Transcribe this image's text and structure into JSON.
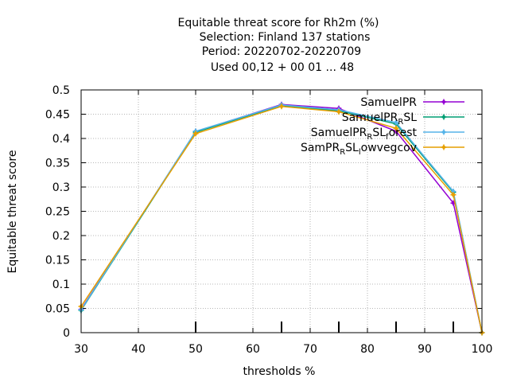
{
  "chart_data": {
    "type": "line",
    "title_lines": [
      "Equitable threat score  for Rh2m (%)",
      "Selection: Finland    137 stations",
      "Period: 20220702-20220709",
      "Used  00,12  + 00 01 ... 48"
    ],
    "xlabel": "thresholds %",
    "ylabel": "Equitable threat score",
    "xlim": [
      30,
      100
    ],
    "ylim": [
      0,
      0.5
    ],
    "xticks": [
      30,
      40,
      50,
      60,
      70,
      80,
      90,
      100
    ],
    "yticks": [
      0,
      0.05,
      0.1,
      0.15,
      0.2,
      0.25,
      0.3,
      0.35,
      0.4,
      0.45,
      0.5
    ],
    "grid": true,
    "legend_position": "top-right",
    "x": [
      30,
      50,
      65,
      75,
      85,
      95,
      100
    ],
    "series": [
      {
        "name": "SamuelPR",
        "legend": {
          "main": "SamuelPR"
        },
        "color": "#9400d3",
        "values": [
          0.048,
          0.414,
          0.47,
          0.462,
          0.415,
          0.267,
          0.0
        ]
      },
      {
        "name": "SamuelPR_RSL",
        "legend": {
          "main": "SamuelPR",
          "sub": "R",
          "rest": "SL"
        },
        "color": "#009e73",
        "values": [
          0.046,
          0.413,
          0.468,
          0.457,
          0.43,
          0.289,
          0.0
        ]
      },
      {
        "name": "SamuelPR_RSL_forest",
        "legend": {
          "main": "SamuelPR",
          "sub": "R",
          "rest": "SL",
          "sub2": "f",
          "rest2": "orest"
        },
        "color": "#56b4e9",
        "values": [
          0.047,
          0.415,
          0.469,
          0.459,
          0.433,
          0.291,
          0.0
        ]
      },
      {
        "name": "SamPR_RSL_lowvegcov",
        "legend": {
          "main": "SamPR",
          "sub": "R",
          "rest": "SL",
          "sub2": "l",
          "rest2": "owvegcov"
        },
        "color": "#e69f00",
        "values": [
          0.054,
          0.41,
          0.466,
          0.455,
          0.421,
          0.284,
          0.0
        ]
      }
    ]
  }
}
